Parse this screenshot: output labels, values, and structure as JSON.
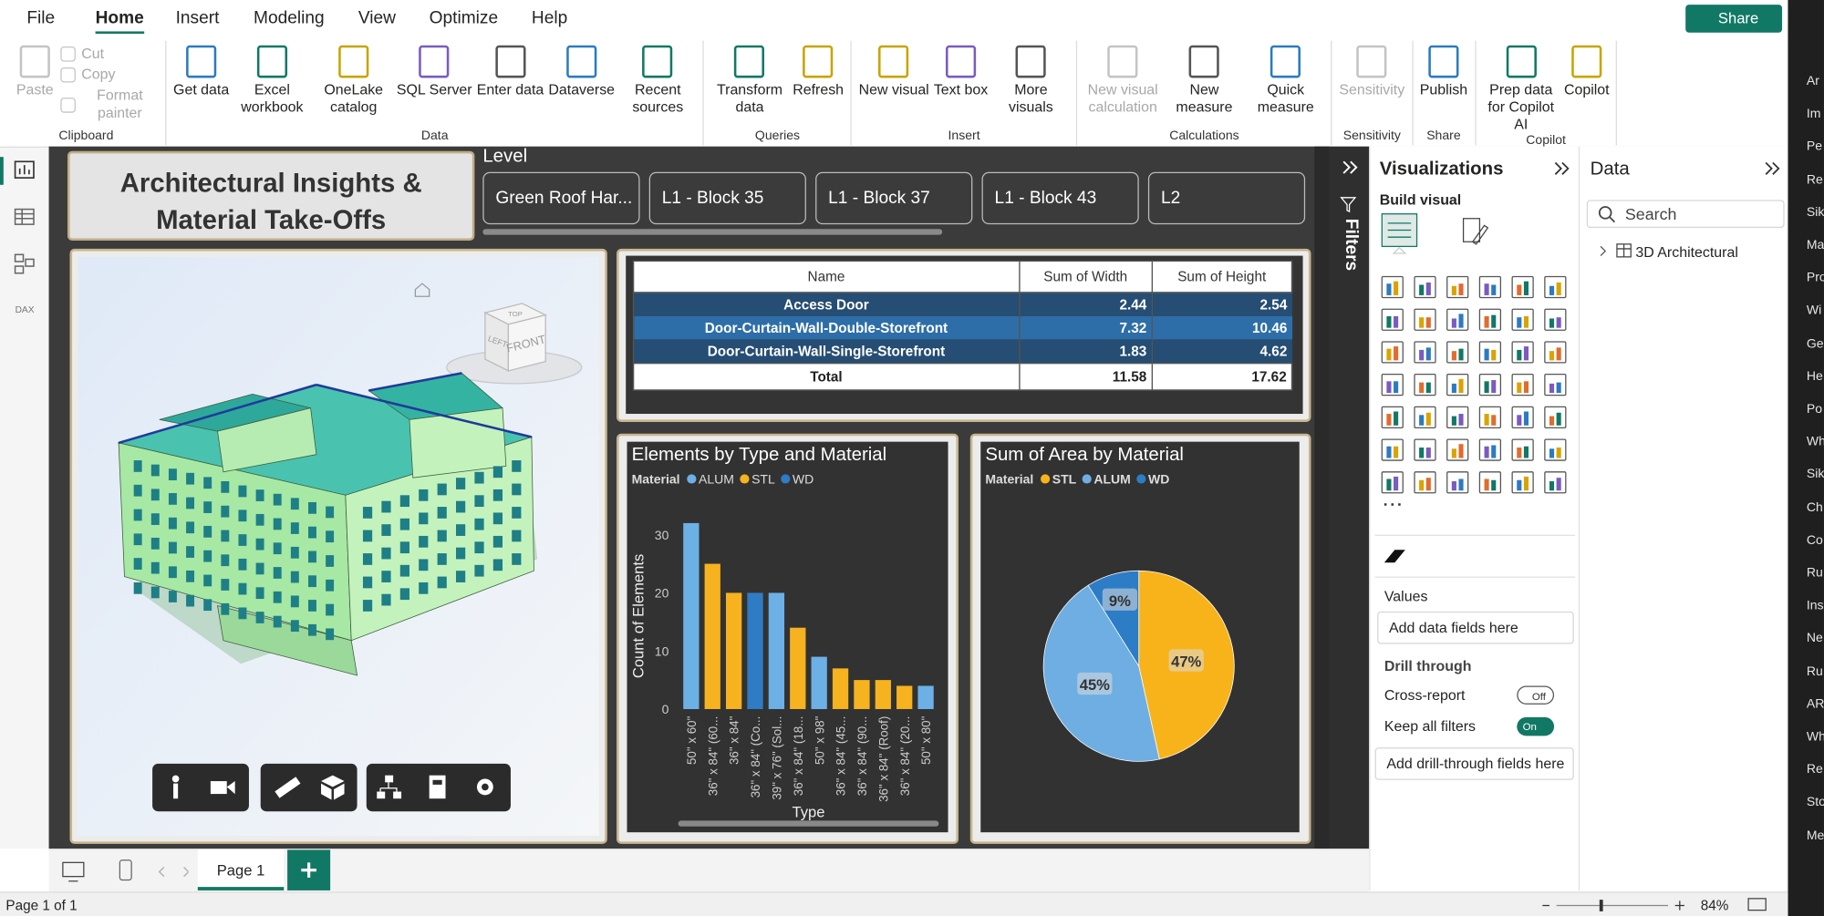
{
  "menu": {
    "tabs": [
      "File",
      "Home",
      "Insert",
      "Modeling",
      "View",
      "Optimize",
      "Help"
    ],
    "share": "Share"
  },
  "ribbon": {
    "groups": [
      {
        "name": "Clipboard",
        "buttons": [
          {
            "label": "Paste",
            "disabled": true
          },
          {
            "label": "Cut",
            "disabled": true
          },
          {
            "label": "Copy",
            "disabled": true
          },
          {
            "label": "Format painter",
            "disabled": true
          }
        ]
      },
      {
        "name": "Data",
        "buttons": [
          {
            "label": "Get data"
          },
          {
            "label": "Excel workbook"
          },
          {
            "label": "OneLake catalog"
          },
          {
            "label": "SQL Server"
          },
          {
            "label": "Enter data"
          },
          {
            "label": "Dataverse"
          },
          {
            "label": "Recent sources"
          }
        ]
      },
      {
        "name": "Queries",
        "buttons": [
          {
            "label": "Transform data"
          },
          {
            "label": "Refresh"
          }
        ]
      },
      {
        "name": "Insert",
        "buttons": [
          {
            "label": "New visual"
          },
          {
            "label": "Text box"
          },
          {
            "label": "More visuals"
          }
        ]
      },
      {
        "name": "Calculations",
        "buttons": [
          {
            "label": "New visual calculation",
            "disabled": true
          },
          {
            "label": "New measure"
          },
          {
            "label": "Quick measure"
          }
        ]
      },
      {
        "name": "Sensitivity",
        "buttons": [
          {
            "label": "Sensitivity",
            "disabled": true
          }
        ]
      },
      {
        "name": "Share",
        "buttons": [
          {
            "label": "Publish"
          }
        ]
      },
      {
        "name": "Copilot",
        "buttons": [
          {
            "label": "Prep data for Copilot AI"
          },
          {
            "label": "Copilot"
          }
        ]
      }
    ]
  },
  "left_nav": {
    "dax": "DAX"
  },
  "report": {
    "title": "Architectural Insights & Material Take-Offs",
    "slicer": {
      "label": "Level",
      "items": [
        "Green Roof Har...",
        "L1 - Block 35",
        "L1 - Block 37",
        "L1 - Block 43",
        "L2"
      ]
    },
    "viewer": {
      "cube": [
        "TOP",
        "LEFT",
        "FRONT"
      ]
    },
    "table": {
      "columns": [
        "Name",
        "Sum of Width",
        "Sum of Height"
      ],
      "rows": [
        [
          "Access Door",
          2.44,
          2.54
        ],
        [
          "Door-Curtain-Wall-Double-Storefront",
          7.32,
          10.46
        ],
        [
          "Door-Curtain-Wall-Single-Storefront",
          1.83,
          4.62
        ]
      ],
      "total": [
        "Total",
        11.58,
        17.62
      ]
    }
  },
  "chart_data": [
    {
      "type": "bar",
      "title": "Elements by Type and Material",
      "legend_title": "Material",
      "y_label": "Count of Elements",
      "x_label": "Type",
      "categories": [
        "50\" x 60\"",
        "36\" x 84\" (60...",
        "36\" x 84\"",
        "36\" x 84\" (Co...",
        "39\" x 76\" (Sol...",
        "36\" x 84\" (18...",
        "50\" x 98\"",
        "36\" x 84\" (45...",
        "36\" x 84\" (90...",
        "36\" x 84\" (Roof)",
        "36\" x 84\" (20...",
        "50\" x 80\""
      ],
      "series": [
        {
          "name": "ALUM",
          "color": "#6cb0e6",
          "values": [
            32,
            null,
            null,
            null,
            20,
            null,
            9,
            null,
            null,
            null,
            null,
            4
          ]
        },
        {
          "name": "STL",
          "color": "#f6b21f",
          "values": [
            null,
            25,
            20,
            null,
            null,
            14,
            null,
            7,
            5,
            5,
            4,
            null
          ]
        },
        {
          "name": "WD",
          "color": "#2f7bc4",
          "values": [
            null,
            null,
            null,
            20,
            null,
            null,
            null,
            null,
            null,
            null,
            null,
            null
          ]
        }
      ],
      "ylim": [
        0,
        32
      ],
      "yticks": [
        0,
        10,
        20,
        30
      ],
      "grid": false
    },
    {
      "type": "pie",
      "title": "Sum of Area by Material",
      "legend_title": "Material",
      "categories": [
        "STL",
        "ALUM",
        "WD"
      ],
      "values": [
        47,
        45,
        9
      ],
      "value_labels": [
        "47%",
        "45%",
        "9%"
      ],
      "colors": [
        "#f8b31b",
        "#6eaee3",
        "#2d7cc6"
      ]
    }
  ],
  "filters": {
    "label": "Filters"
  },
  "visualizations": {
    "title": "Visualizations",
    "build_visual": "Build visual",
    "values": "Values",
    "values_placeholder": "Add data fields here",
    "drill_through": "Drill through",
    "cross_report": "Cross-report",
    "cross_report_state": "Off",
    "keep_filters": "Keep all filters",
    "keep_filters_state": "On",
    "drill_placeholder": "Add drill-through fields here"
  },
  "data_pane": {
    "title": "Data",
    "search": "Search",
    "tables": [
      "3D Architectural"
    ]
  },
  "pages": {
    "tabs": [
      "Page 1"
    ],
    "status": "Page 1 of 1",
    "zoom": "84%"
  },
  "side_window": {
    "items": [
      "Ar",
      "Im",
      "Pe",
      "Re",
      "Sik",
      "Ma",
      "Pro",
      "Wi",
      "Ge",
      "He",
      "Po",
      "Wh",
      "Sik",
      "Ch",
      "Co",
      "Ru",
      "Ins",
      "Ne",
      "Ru",
      "AR",
      "Wh",
      "Re",
      "Sto",
      "Me"
    ]
  }
}
